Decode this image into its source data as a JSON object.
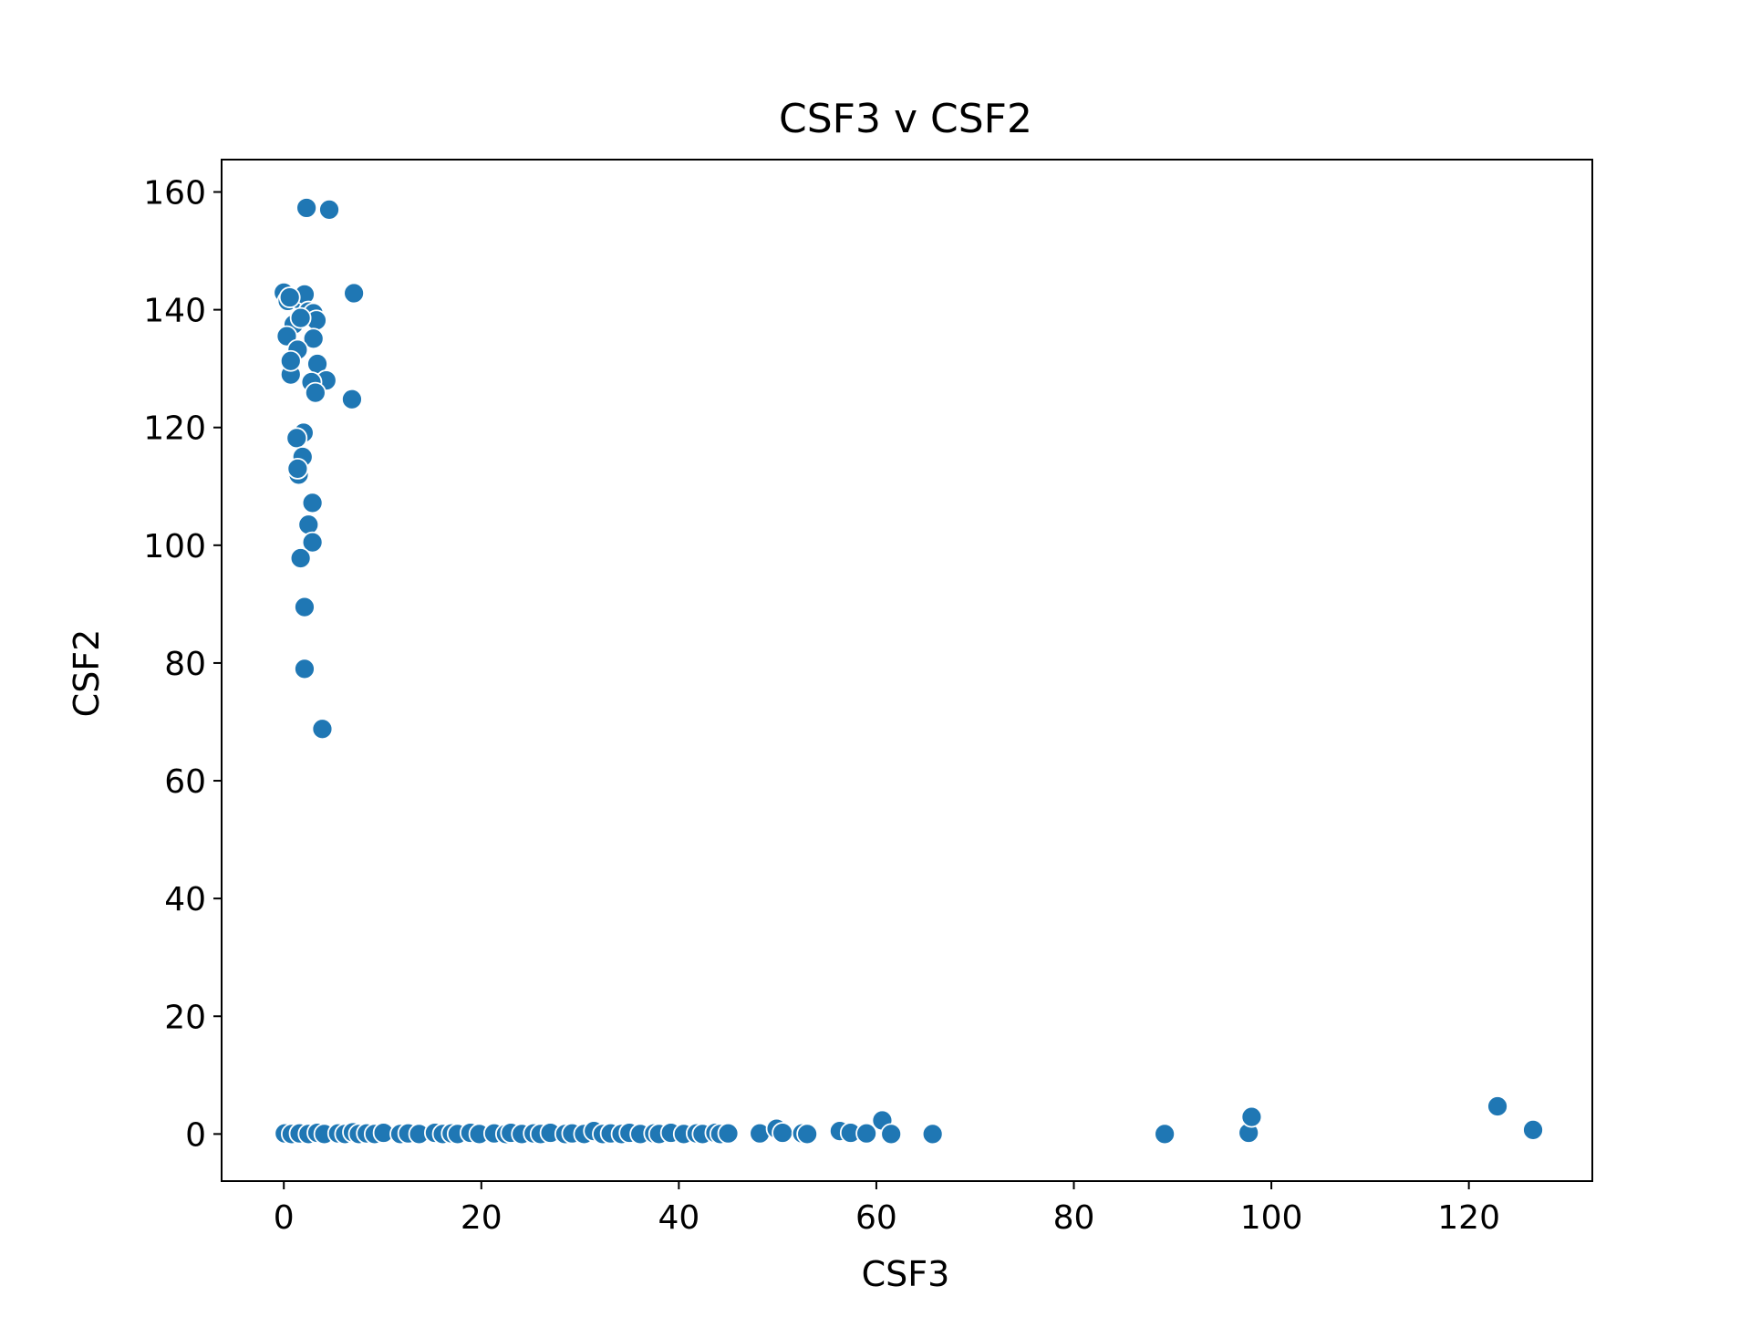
{
  "chart_data": {
    "type": "scatter",
    "title": "CSF3 v CSF2",
    "xlabel": "CSF3",
    "ylabel": "CSF2",
    "xlim": [
      -6.3,
      132.5
    ],
    "ylim": [
      -8,
      165.5
    ],
    "xticks": [
      0,
      20,
      40,
      60,
      80,
      100,
      120
    ],
    "yticks": [
      0,
      20,
      40,
      60,
      80,
      100,
      120,
      140,
      160
    ],
    "grid": false,
    "legend": "none",
    "color": "#1f77b4",
    "series": [
      {
        "x": [
          2.3,
          4.6,
          0.0,
          0.4,
          1.5,
          2.1,
          0.6,
          7.1,
          2.5,
          3.0,
          3.3,
          1.0,
          1.7,
          0.3,
          3.0,
          1.4,
          0.7,
          3.4,
          0.7,
          4.3,
          2.8,
          3.2,
          6.9,
          2.0,
          1.3,
          1.9,
          1.5,
          1.4,
          2.9,
          2.5,
          2.9,
          1.7,
          2.1,
          2.1,
          3.9,
          0.1,
          0.8,
          1.6,
          2.5,
          3.4,
          4.1,
          5.5,
          6.2,
          7.0,
          7.6,
          8.4,
          9.2,
          10.1,
          11.8,
          12.6,
          13.7,
          15.3,
          16.1,
          17.0,
          17.6,
          18.9,
          19.8,
          21.3,
          22.5,
          23.0,
          24.1,
          25.3,
          26.0,
          27.0,
          28.5,
          29.2,
          30.4,
          31.4,
          32.3,
          33.1,
          34.2,
          35.0,
          36.1,
          37.5,
          38.0,
          39.2,
          40.5,
          41.8,
          42.4,
          43.7,
          44.2,
          45.0,
          48.2,
          49.9,
          50.5,
          52.5,
          53.0,
          56.3,
          57.4,
          59.0,
          60.6,
          61.5,
          65.7,
          89.2,
          97.7,
          98.0,
          122.9,
          126.5
        ],
        "y": [
          157.3,
          157.0,
          142.9,
          141.5,
          141.8,
          142.6,
          142.1,
          142.8,
          139.7,
          139.4,
          138.2,
          137.5,
          138.6,
          135.5,
          135.1,
          133.2,
          129.0,
          130.8,
          131.3,
          128.0,
          127.7,
          125.9,
          124.8,
          119.1,
          118.2,
          115.0,
          112.0,
          113.0,
          107.2,
          103.5,
          100.5,
          97.8,
          89.5,
          79.0,
          68.8,
          0.1,
          0.0,
          0.1,
          0.0,
          0.2,
          0.0,
          0.1,
          0.0,
          0.3,
          0.0,
          0.1,
          0.0,
          0.2,
          0.0,
          0.1,
          0.0,
          0.2,
          0.0,
          0.1,
          0.0,
          0.2,
          0.0,
          0.1,
          0.0,
          0.2,
          0.0,
          0.1,
          0.0,
          0.2,
          0.0,
          0.1,
          0.0,
          0.5,
          0.0,
          0.1,
          0.0,
          0.2,
          0.0,
          0.1,
          0.0,
          0.2,
          0.0,
          0.1,
          0.0,
          0.2,
          0.0,
          0.1,
          0.1,
          0.9,
          0.2,
          0.1,
          0.0,
          0.5,
          0.2,
          0.1,
          2.3,
          0.0,
          0.0,
          0.0,
          0.2,
          2.9,
          4.7,
          0.7
        ]
      }
    ]
  }
}
